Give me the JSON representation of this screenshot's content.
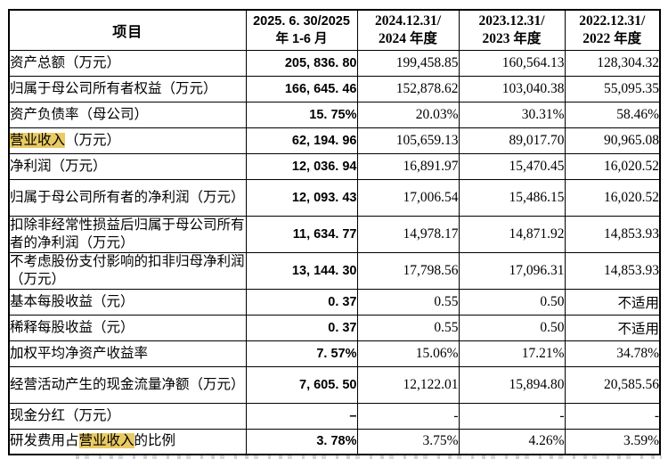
{
  "colors": {
    "highlight": "#e9ca63",
    "border": "#000000",
    "text": "#000000"
  },
  "table": {
    "header": {
      "item_col": "项目",
      "period_cols": [
        {
          "line1": "2025. 6. 30/2025",
          "line2": "年 1-6 月"
        },
        {
          "line1": "2024.12.31/",
          "line2": "2024 年度"
        },
        {
          "line1": "2023.12.31/",
          "line2": "2023 年度"
        },
        {
          "line1": "2022.12.31/",
          "line2": "2022 年度"
        }
      ]
    },
    "rows": [
      {
        "label_parts": [
          {
            "text": "资产总额（万元）",
            "highlight": false
          }
        ],
        "values": [
          "205, 836. 80",
          "199,458.85",
          "160,564.13",
          "128,304.32"
        ],
        "tall": false
      },
      {
        "label_parts": [
          {
            "text": "归属于母公司所有者权益（万元）",
            "highlight": false
          }
        ],
        "values": [
          "166, 645. 46",
          "152,878.62",
          "103,040.38",
          "55,095.35"
        ],
        "tall": false
      },
      {
        "label_parts": [
          {
            "text": "资产负债率（母公司）",
            "highlight": false
          }
        ],
        "values": [
          "15. 75%",
          "20.03%",
          "30.31%",
          "58.46%"
        ],
        "tall": false
      },
      {
        "label_parts": [
          {
            "text": "营业收入",
            "highlight": true
          },
          {
            "text": "（万元）",
            "highlight": false
          }
        ],
        "values": [
          "62, 194. 96",
          "105,659.13",
          "89,017.70",
          "90,965.08"
        ],
        "tall": false
      },
      {
        "label_parts": [
          {
            "text": "净利润（万元）",
            "highlight": false
          }
        ],
        "values": [
          "12, 036. 94",
          "16,891.97",
          "15,470.45",
          "16,020.52"
        ],
        "tall": false
      },
      {
        "label_parts": [
          {
            "text": "归属于母公司所有者的净利润（万元）",
            "highlight": false
          }
        ],
        "values": [
          "12, 093. 43",
          "17,006.54",
          "15,486.15",
          "16,020.52"
        ],
        "tall": true
      },
      {
        "label_parts": [
          {
            "text": "扣除非经常性损益后归属于母公司所有者的净利润（万元）",
            "highlight": false
          }
        ],
        "values": [
          "11, 634. 77",
          "14,978.17",
          "14,871.92",
          "14,853.93"
        ],
        "tall": true
      },
      {
        "label_parts": [
          {
            "text": "不考虑股份支付影响的扣非归母净利润（万元）",
            "highlight": false
          }
        ],
        "values": [
          "13, 144. 30",
          "17,798.56",
          "17,096.31",
          "14,853.93"
        ],
        "tall": true
      },
      {
        "label_parts": [
          {
            "text": "基本每股收益（元）",
            "highlight": false
          }
        ],
        "values": [
          "0. 37",
          "0.55",
          "0.50",
          "不适用"
        ],
        "tall": false
      },
      {
        "label_parts": [
          {
            "text": "稀释每股收益（元）",
            "highlight": false
          }
        ],
        "values": [
          "0. 37",
          "0.55",
          "0.50",
          "不适用"
        ],
        "tall": false
      },
      {
        "label_parts": [
          {
            "text": "加权平均净资产收益率",
            "highlight": false
          }
        ],
        "values": [
          "7. 57%",
          "15.06%",
          "17.21%",
          "34.78%"
        ],
        "tall": false
      },
      {
        "label_parts": [
          {
            "text": "经营活动产生的现金流量净额（万元）",
            "highlight": false
          }
        ],
        "values": [
          "7, 605. 50",
          "12,122.01",
          "15,894.80",
          "20,585.56"
        ],
        "tall": true
      },
      {
        "label_parts": [
          {
            "text": "现金分红（万元）",
            "highlight": false
          }
        ],
        "values": [
          "–",
          "-",
          "-",
          "-"
        ],
        "tall": false
      },
      {
        "label_parts": [
          {
            "text": "研发费用占",
            "highlight": false
          },
          {
            "text": "营业收入",
            "highlight": true
          },
          {
            "text": "的比例",
            "highlight": false
          }
        ],
        "values": [
          "3. 78%",
          "3.75%",
          "4.26%",
          "3.59%"
        ],
        "tall": false
      }
    ]
  }
}
